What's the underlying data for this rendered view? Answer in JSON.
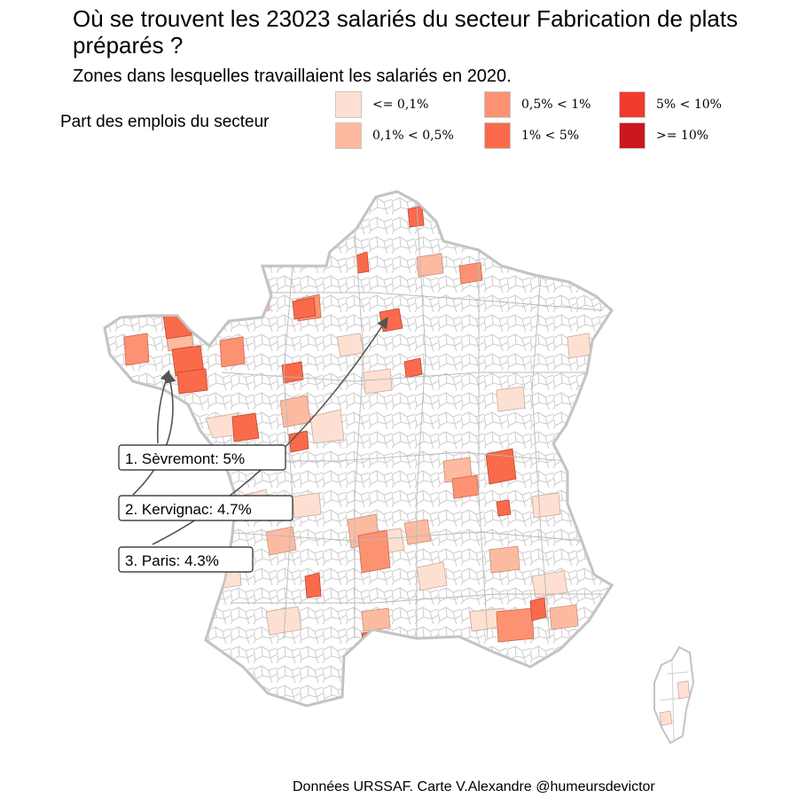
{
  "title": "Où se trouvent les 23023 salariés du secteur Fabrication de plats préparés ?",
  "subtitle": "Zones dans lesquelles travaillaient les salariés en 2020.",
  "legend": {
    "title": "Part des emplois du secteur",
    "items": [
      {
        "label": "<= 0,1%",
        "color": "#FEE0D2"
      },
      {
        "label": "0,1% < 0,5%",
        "color": "#FCBBA1"
      },
      {
        "label": "0,5% < 1%",
        "color": "#FC9272"
      },
      {
        "label": "1% < 5%",
        "color": "#FB6A4A"
      },
      {
        "label": "5% < 10%",
        "color": "#EF3B2C"
      },
      {
        "label": ">= 10%",
        "color": "#CB181D"
      }
    ]
  },
  "callouts": [
    {
      "label": "1. Sèvremont: 5%"
    },
    {
      "label": "2. Kervignac: 4.7%"
    },
    {
      "label": "3. Paris: 4.3%"
    }
  ],
  "caption": "Données URSSAF. Carte V.Alexandre @humeursdevictor"
}
